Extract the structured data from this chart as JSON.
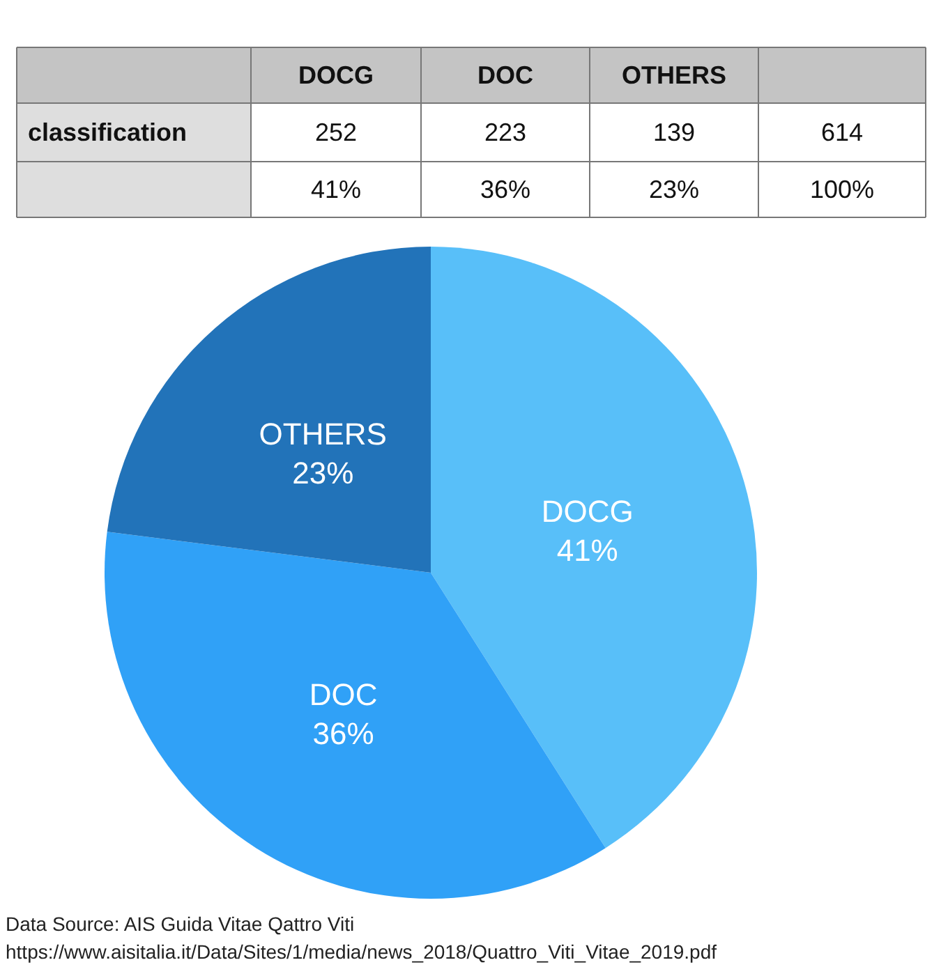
{
  "chart_data": {
    "type": "pie",
    "categories": [
      "DOCG",
      "DOC",
      "OTHERS"
    ],
    "values": [
      41,
      36,
      23
    ],
    "colors": [
      "#58bff9",
      "#30a1f7",
      "#2273b9"
    ],
    "value_labels": [
      "41%",
      "36%",
      "23%"
    ],
    "annotations": [
      "classification",
      "252",
      "223",
      "139",
      "614",
      "100%",
      "Data Source: AIS Guida Vitae Qattro Viti",
      "https://www.aisitalia.it/Data/Sites/1/media/news_2018/Quattro_Viti_Vitae_2019.pdf"
    ]
  }
}
